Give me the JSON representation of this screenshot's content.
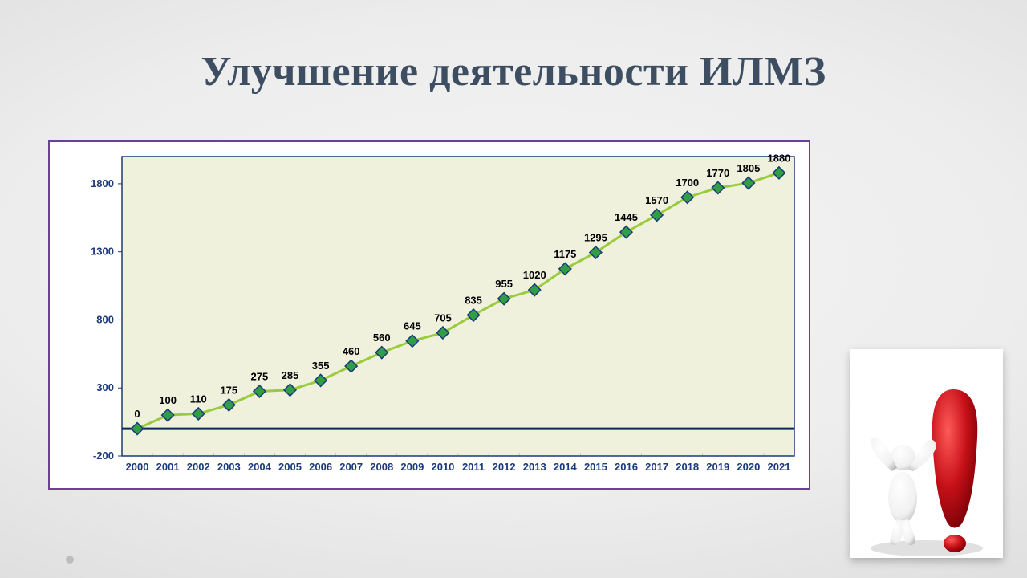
{
  "title": "Улучшение деятельности ИЛМЗ",
  "chart": {
    "type": "line-with-markers",
    "plot_background": "#eff1dd",
    "border_color": "#1b3a78",
    "baseline_color": "#0b2a55",
    "baseline_width": 3,
    "line_color": "#9acb3c",
    "line_width": 3,
    "marker_fill": "#2f9e44",
    "marker_stroke": "#1b3a78",
    "marker_size": 12,
    "data_label_color": "#000000",
    "data_label_fontsize": 13,
    "data_label_fontweight": "bold",
    "axis_label_color": "#1b3a78",
    "axis_label_fontsize": 13,
    "axis_label_fontweight": "bold",
    "y_ticks": [
      -200,
      300,
      800,
      1300,
      1800
    ],
    "ylim": [
      -200,
      2000
    ],
    "categories": [
      "2000",
      "2001",
      "2002",
      "2003",
      "2004",
      "2005",
      "2006",
      "2007",
      "2008",
      "2009",
      "2010",
      "2011",
      "2012",
      "2013",
      "2014",
      "2015",
      "2016",
      "2017",
      "2018",
      "2019",
      "2020",
      "2021"
    ],
    "values": [
      0,
      100,
      110,
      175,
      275,
      285,
      355,
      460,
      560,
      645,
      705,
      835,
      955,
      1020,
      1175,
      1295,
      1445,
      1570,
      1700,
      1770,
      1805,
      1880
    ]
  },
  "clipart": {
    "description": "3D white figure celebrating next to large red exclamation mark",
    "exclamation_color": "#c61017",
    "figure_color": "#f0f0f0"
  }
}
